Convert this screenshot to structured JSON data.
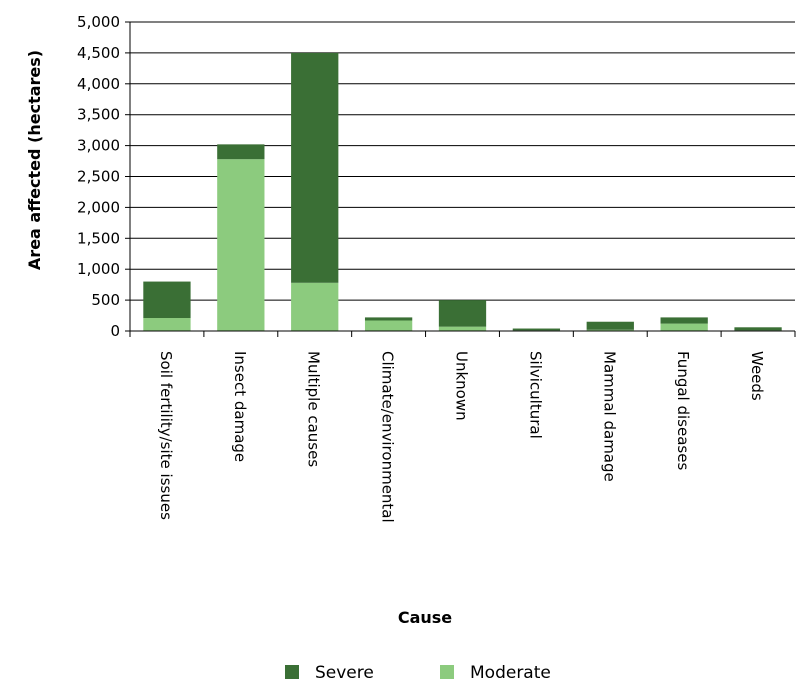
{
  "chart_data": {
    "type": "bar",
    "stacked": true,
    "title": "",
    "xlabel": "Cause",
    "ylabel": "Area affected (hectares)",
    "ylim": [
      0,
      5000
    ],
    "yticks": [
      0,
      500,
      1000,
      1500,
      2000,
      2500,
      3000,
      3500,
      4000,
      4500,
      5000
    ],
    "ytick_labels": [
      "0",
      "500",
      "1,000",
      "1,500",
      "2,000",
      "2,500",
      "3,000",
      "3,500",
      "4,000",
      "4,500",
      "5,000"
    ],
    "grid": "horizontal",
    "legend": "bottom",
    "categories": [
      "Soil fertility/site issues",
      "Insect damage",
      "Multiple causes",
      "Climate/environmental",
      "Unknown",
      "Silvicultural",
      "Mammal damage",
      "Fungal diseases",
      "Weeds"
    ],
    "series": [
      {
        "name": "Moderate",
        "color": "#8ccb7e",
        "values": [
          210,
          2780,
          780,
          170,
          70,
          10,
          20,
          120,
          10
        ]
      },
      {
        "name": "Severe",
        "color": "#3a6f35",
        "values": [
          590,
          240,
          3720,
          50,
          430,
          30,
          130,
          100,
          50
        ]
      }
    ]
  }
}
